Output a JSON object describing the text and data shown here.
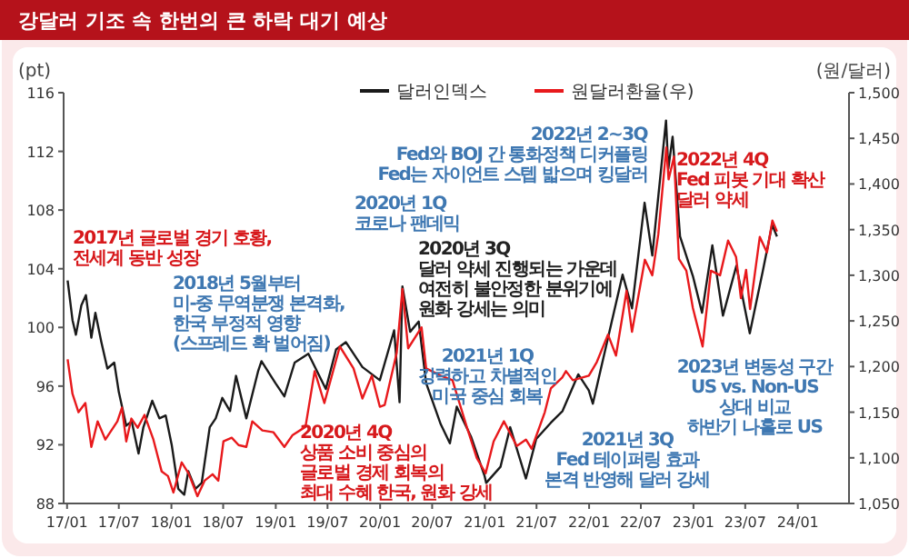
{
  "chart_data": {
    "type": "line",
    "title": "강달러 기조 속 한번의 큰 하락 대기 예상",
    "ylabel": "(pt)",
    "y2label": "(원/달러)",
    "legend": "top",
    "grid": false,
    "marker": "none",
    "line_style": "solid",
    "xlim": [
      "2016-12-20",
      "2024-06-28"
    ],
    "xticks": [
      {
        "value": "2017-01-01",
        "label": "17/01"
      },
      {
        "value": "2017-07-01",
        "label": "17/07"
      },
      {
        "value": "2018-01-01",
        "label": "18/01"
      },
      {
        "value": "2018-07-01",
        "label": "18/07"
      },
      {
        "value": "2019-01-01",
        "label": "19/01"
      },
      {
        "value": "2019-07-01",
        "label": "19/07"
      },
      {
        "value": "2020-01-01",
        "label": "20/01"
      },
      {
        "value": "2020-07-01",
        "label": "20/07"
      },
      {
        "value": "2021-01-01",
        "label": "21/01"
      },
      {
        "value": "2021-07-01",
        "label": "21/07"
      },
      {
        "value": "2022-01-01",
        "label": "22/01"
      },
      {
        "value": "2022-07-01",
        "label": "22/07"
      },
      {
        "value": "2023-01-01",
        "label": "23/01"
      },
      {
        "value": "2023-07-01",
        "label": "23/07"
      },
      {
        "value": "2024-01-01",
        "label": "24/01"
      }
    ],
    "ylim": [
      88,
      116
    ],
    "yticks": [
      88,
      92,
      96,
      100,
      104,
      108,
      112,
      116
    ],
    "y2lim": [
      1050,
      1500
    ],
    "y2ticks": [
      {
        "value": 1050,
        "label": "1,050"
      },
      {
        "value": 1100,
        "label": "1,100"
      },
      {
        "value": 1150,
        "label": "1,150"
      },
      {
        "value": 1200,
        "label": "1,200"
      },
      {
        "value": 1250,
        "label": "1,250"
      },
      {
        "value": 1300,
        "label": "1,300"
      },
      {
        "value": 1350,
        "label": "1,350"
      },
      {
        "value": 1400,
        "label": "1,400"
      },
      {
        "value": 1450,
        "label": "1,450"
      },
      {
        "value": 1500,
        "label": "1,500"
      }
    ],
    "series": [
      {
        "name": "달러인덱스",
        "color": "#1a1a1a",
        "x": [
          "2017-01-03",
          "2017-01-20",
          "2017-02-01",
          "2017-02-20",
          "2017-03-08",
          "2017-03-27",
          "2017-04-10",
          "2017-05-01",
          "2017-05-22",
          "2017-06-15",
          "2017-07-01",
          "2017-07-27",
          "2017-08-15",
          "2017-09-08",
          "2017-09-25",
          "2017-10-26",
          "2017-11-20",
          "2017-12-12",
          "2018-01-02",
          "2018-01-25",
          "2018-02-15",
          "2018-03-01",
          "2018-03-26",
          "2018-04-17",
          "2018-05-15",
          "2018-06-05",
          "2018-06-28",
          "2018-07-25",
          "2018-08-15",
          "2018-09-20",
          "2018-10-31",
          "2018-11-12",
          "2018-12-31",
          "2019-01-31",
          "2019-03-08",
          "2019-04-25",
          "2019-06-25",
          "2019-07-31",
          "2019-09-03",
          "2019-10-31",
          "2019-12-31",
          "2020-02-19",
          "2020-03-09",
          "2020-03-19",
          "2020-04-15",
          "2020-05-15",
          "2020-06-10",
          "2020-07-31",
          "2020-09-01",
          "2020-09-25",
          "2020-11-15",
          "2020-12-31",
          "2021-01-06",
          "2021-02-25",
          "2021-03-31",
          "2021-05-25",
          "2021-06-30",
          "2021-08-20",
          "2021-09-30",
          "2021-11-24",
          "2021-12-31",
          "2022-01-14",
          "2022-03-07",
          "2022-04-28",
          "2022-05-31",
          "2022-07-14",
          "2022-08-10",
          "2022-09-27",
          "2022-10-05",
          "2022-10-20",
          "2022-11-15",
          "2022-12-30",
          "2023-01-31",
          "2023-03-08",
          "2023-04-14",
          "2023-05-31",
          "2023-07-17",
          "2023-08-31",
          "2023-10-03",
          "2023-10-20"
        ],
        "values": [
          103.2,
          100.5,
          99.5,
          101.5,
          102.2,
          99.3,
          101.0,
          99.0,
          97.2,
          97.6,
          95.6,
          93.3,
          93.6,
          91.4,
          93.2,
          95.0,
          93.8,
          94.0,
          92.0,
          89.0,
          88.6,
          90.2,
          89.0,
          89.4,
          93.2,
          93.8,
          95.2,
          94.3,
          96.7,
          93.8,
          97.0,
          97.7,
          96.2,
          95.3,
          97.6,
          98.2,
          95.8,
          98.5,
          99.0,
          97.3,
          96.4,
          99.8,
          94.9,
          102.8,
          99.7,
          100.4,
          96.2,
          93.4,
          92.1,
          94.6,
          92.5,
          89.9,
          89.4,
          90.5,
          93.2,
          89.7,
          92.4,
          93.5,
          94.3,
          96.8,
          95.7,
          94.8,
          99.2,
          103.6,
          101.3,
          108.5,
          104.9,
          114.1,
          110.8,
          113.0,
          106.2,
          103.5,
          101.0,
          105.6,
          100.8,
          104.2,
          99.6,
          103.8,
          107.0,
          106.2
        ]
      },
      {
        "name": "원달러환율(우)",
        "color": "#e8191c",
        "axis": "y2",
        "x": [
          "2017-01-03",
          "2017-01-20",
          "2017-02-10",
          "2017-03-06",
          "2017-03-27",
          "2017-04-18",
          "2017-05-15",
          "2017-06-26",
          "2017-07-12",
          "2017-07-27",
          "2017-08-14",
          "2017-09-05",
          "2017-09-29",
          "2017-10-30",
          "2017-11-28",
          "2017-12-20",
          "2018-01-08",
          "2018-02-06",
          "2018-03-02",
          "2018-04-02",
          "2018-04-27",
          "2018-05-25",
          "2018-06-14",
          "2018-07-02",
          "2018-07-31",
          "2018-08-24",
          "2018-09-20",
          "2018-10-11",
          "2018-11-15",
          "2018-12-24",
          "2019-01-31",
          "2019-03-01",
          "2019-04-15",
          "2019-05-17",
          "2019-06-20",
          "2019-08-13",
          "2019-09-30",
          "2019-10-31",
          "2019-12-03",
          "2019-12-31",
          "2020-01-17",
          "2020-02-28",
          "2020-03-19",
          "2020-04-08",
          "2020-05-25",
          "2020-06-10",
          "2020-07-31",
          "2020-09-10",
          "2020-10-30",
          "2020-12-04",
          "2021-01-04",
          "2021-02-01",
          "2021-03-09",
          "2021-04-23",
          "2021-05-25",
          "2021-06-14",
          "2021-07-30",
          "2021-08-20",
          "2021-09-29",
          "2021-10-12",
          "2021-11-05",
          "2021-12-31",
          "2022-01-28",
          "2022-03-08",
          "2022-04-05",
          "2022-05-12",
          "2022-05-31",
          "2022-07-15",
          "2022-08-10",
          "2022-08-31",
          "2022-09-28",
          "2022-10-06",
          "2022-10-25",
          "2022-11-11",
          "2022-12-07",
          "2022-12-30",
          "2023-02-02",
          "2023-03-03",
          "2023-04-04",
          "2023-05-02",
          "2023-05-30",
          "2023-06-16",
          "2023-07-04",
          "2023-07-18",
          "2023-08-21",
          "2023-09-15",
          "2023-10-04",
          "2023-10-20"
        ],
        "values": [
          1208,
          1170,
          1150,
          1160,
          1112,
          1140,
          1120,
          1140,
          1155,
          1118,
          1143,
          1133,
          1147,
          1120,
          1085,
          1080,
          1062,
          1095,
          1083,
          1058,
          1075,
          1082,
          1075,
          1118,
          1122,
          1114,
          1112,
          1140,
          1130,
          1128,
          1112,
          1125,
          1134,
          1195,
          1160,
          1222,
          1198,
          1165,
          1190,
          1156,
          1158,
          1215,
          1285,
          1220,
          1243,
          1198,
          1190,
          1185,
          1134,
          1100,
          1083,
          1118,
          1140,
          1113,
          1120,
          1110,
          1150,
          1176,
          1188,
          1195,
          1185,
          1190,
          1205,
          1235,
          1212,
          1283,
          1238,
          1317,
          1300,
          1345,
          1440,
          1405,
          1430,
          1318,
          1305,
          1264,
          1222,
          1305,
          1300,
          1338,
          1320,
          1275,
          1306,
          1263,
          1342,
          1325,
          1360,
          1348
        ]
      }
    ],
    "annotations": [
      "2017년 글로벌 경기 호황,\n전세계 동반 성장",
      "2018년 5월부터\n미-중 무역분쟁 본격화,\n한국 부정적 영향\n(스프레드 확 벌어짐)",
      "2020년 1Q\n코로나 팬데믹",
      "2020년 3Q\n달러 약세 진행되는 가운데\n여전히 불안정한 분위기에\n원화 강세는 의미",
      "2020년 4Q\n상품 소비 중심의\n글로벌 경제 회복의\n최대 수혜 한국, 원화 강세",
      "2021년 1Q\n강력하고 차별적인\n미국 중심 회복",
      "2021년 3Q\nFed 테이퍼링 효과\n본격 반영해 달러 강세",
      "2022년 2~3Q\nFed와 BOJ 간 통화정책 디커플링\nFed는 자이언트 스텝 밟으며 킹달러",
      "2022년 4Q\nFed 피봇 기대 확산\n달러 약세",
      "2023년 변동성 구간\nUS vs. Non-US\n상대 비교\n하반기 나홀로 US"
    ]
  }
}
